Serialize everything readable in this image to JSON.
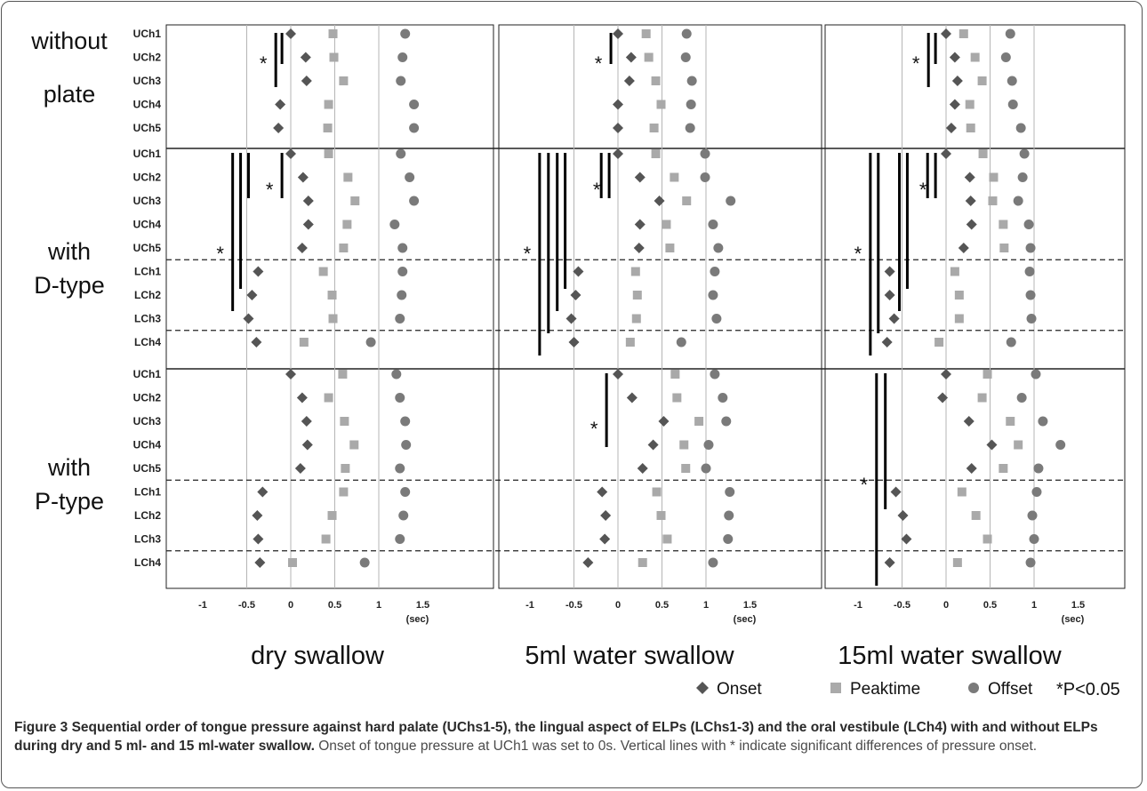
{
  "caption": {
    "lead": "Figure 3 Sequential order of tongue pressure against hard palate (UChs1-5), the lingual aspect of ELPs (LChs1-3) and the oral vestibule (LCh4) with and without ELPs during dry and 5 ml- and 15 ml-water swallow.",
    "text": "Onset of tongue pressure at UCh1 was set to 0s. Vertical lines with * indicate significant differences of pressure onset."
  },
  "chart_data": {
    "type": "scatter",
    "x_unit": "(sec)",
    "xlim": [
      -1,
      1.5
    ],
    "x_ticks": [
      "-1",
      "-0.5",
      "0",
      "0.5",
      "1",
      "1.5"
    ],
    "grid": "vertical lines at -0.5, 0, 0.5, 1",
    "legend": {
      "placement": "bottom-right",
      "items": [
        {
          "marker": "diamond",
          "label": "Onset",
          "color": "#555555"
        },
        {
          "marker": "square",
          "label": "Peaktime",
          "color": "#aaaaaa"
        },
        {
          "marker": "circle",
          "label": "Offset",
          "color": "#7a7a7a"
        }
      ],
      "significance": "*P<0.05"
    },
    "columns": [
      "dry swallow",
      "5ml water swallow",
      "15ml water swallow"
    ],
    "rows": [
      {
        "label": "without plate",
        "channels": [
          "UCh1",
          "UCh2",
          "UCh3",
          "UCh4",
          "UCh5"
        ],
        "panels": [
          {
            "onset": [
              0,
              0.17,
              0.18,
              -0.12,
              -0.14
            ],
            "peak": [
              0.48,
              0.49,
              0.6,
              0.43,
              0.42
            ],
            "offset": [
              1.3,
              1.27,
              1.25,
              1.4,
              1.4
            ],
            "sig_lines": [
              -0.1,
              -0.17
            ],
            "star": "*"
          },
          {
            "onset": [
              0,
              0.15,
              0.13,
              0,
              0
            ],
            "peak": [
              0.32,
              0.35,
              0.43,
              0.49,
              0.41
            ],
            "offset": [
              0.78,
              0.77,
              0.84,
              0.83,
              0.82
            ],
            "sig_lines": [
              -0.08
            ],
            "star": "*"
          },
          {
            "onset": [
              0,
              0.1,
              0.13,
              0.1,
              0.06
            ],
            "peak": [
              0.2,
              0.33,
              0.41,
              0.27,
              0.28
            ],
            "offset": [
              0.73,
              0.68,
              0.75,
              0.76,
              0.85
            ],
            "sig_lines": [
              -0.12,
              -0.2
            ],
            "star": "*"
          }
        ]
      },
      {
        "label": "with D-type",
        "channels": [
          "UCh1",
          "UCh2",
          "UCh3",
          "UCh4",
          "UCh5",
          "LCh1",
          "LCh2",
          "LCh3",
          "LCh4"
        ],
        "dashed_after": [
          5,
          8
        ],
        "panels": [
          {
            "onset": [
              0,
              0.14,
              0.2,
              0.2,
              0.13,
              -0.37,
              -0.44,
              -0.48,
              -0.39
            ],
            "peak": [
              0.43,
              0.65,
              0.73,
              0.64,
              0.6,
              0.37,
              0.47,
              0.48,
              0.15
            ],
            "offset": [
              1.25,
              1.35,
              1.4,
              1.18,
              1.27,
              1.27,
              1.26,
              1.24,
              0.91
            ],
            "sig_lines": [
              -0.1,
              -0.48,
              -0.57,
              -0.66
            ],
            "star": "*"
          },
          {
            "onset": [
              0,
              0.25,
              0.47,
              0.25,
              0.24,
              -0.45,
              -0.48,
              -0.53,
              -0.5
            ],
            "peak": [
              0.43,
              0.64,
              0.78,
              0.55,
              0.59,
              0.2,
              0.22,
              0.21,
              0.14
            ],
            "offset": [
              0.99,
              0.99,
              1.28,
              1.08,
              1.14,
              1.1,
              1.08,
              1.12,
              0.72
            ],
            "sig_lines": [
              -0.1,
              -0.19,
              -0.6,
              -0.69,
              -0.79,
              -0.89
            ],
            "star": "*"
          },
          {
            "onset": [
              0,
              0.27,
              0.28,
              0.29,
              0.2,
              -0.64,
              -0.64,
              -0.59,
              -0.67
            ],
            "peak": [
              0.42,
              0.54,
              0.53,
              0.65,
              0.66,
              0.1,
              0.15,
              0.15,
              -0.08
            ],
            "offset": [
              0.89,
              0.87,
              0.82,
              0.94,
              0.96,
              0.95,
              0.96,
              0.97,
              0.74
            ],
            "sig_lines": [
              -0.12,
              -0.21,
              -0.44,
              -0.53,
              -0.77,
              -0.86
            ],
            "star": "*"
          }
        ]
      },
      {
        "label": "with P-type",
        "channels": [
          "UCh1",
          "UCh2",
          "UCh3",
          "UCh4",
          "UCh5",
          "LCh1",
          "LCh2",
          "LCh3",
          "LCh4"
        ],
        "dashed_after": [
          5,
          8
        ],
        "panels": [
          {
            "onset": [
              0,
              0.13,
              0.18,
              0.19,
              0.11,
              -0.32,
              -0.38,
              -0.37,
              -0.35
            ],
            "peak": [
              0.59,
              0.43,
              0.61,
              0.72,
              0.62,
              0.6,
              0.47,
              0.4,
              0.02
            ],
            "offset": [
              1.2,
              1.24,
              1.3,
              1.31,
              1.24,
              1.3,
              1.28,
              1.24,
              0.84
            ],
            "sig_lines": [],
            "star": ""
          },
          {
            "onset": [
              0,
              0.16,
              0.52,
              0.4,
              0.28,
              -0.18,
              -0.14,
              -0.15,
              -0.34
            ],
            "peak": [
              0.65,
              0.67,
              0.92,
              0.75,
              0.77,
              0.44,
              0.49,
              0.56,
              0.28
            ],
            "offset": [
              1.1,
              1.19,
              1.23,
              1.03,
              1.0,
              1.27,
              1.26,
              1.25,
              1.08
            ],
            "sig_lines": [
              -0.13
            ],
            "star": "*"
          },
          {
            "onset": [
              0,
              -0.04,
              0.26,
              0.52,
              0.29,
              -0.57,
              -0.49,
              -0.45,
              -0.64
            ],
            "peak": [
              0.47,
              0.41,
              0.73,
              0.82,
              0.65,
              0.18,
              0.34,
              0.47,
              0.13
            ],
            "offset": [
              1.02,
              0.86,
              1.1,
              1.3,
              1.05,
              1.03,
              0.98,
              1.0,
              0.96
            ],
            "sig_lines": [
              -0.69,
              -0.79
            ],
            "star": "*"
          }
        ]
      }
    ]
  }
}
